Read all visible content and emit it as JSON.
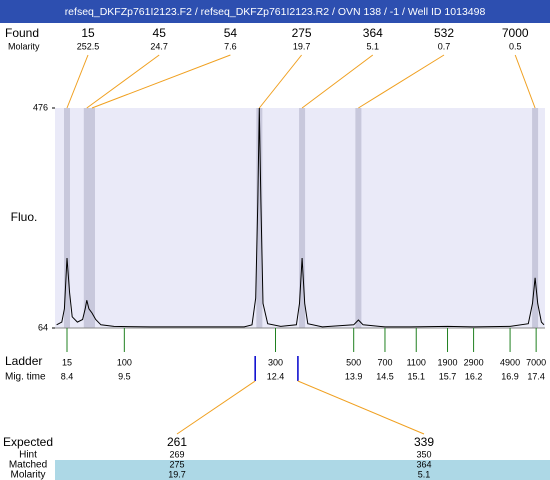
{
  "title": "refseq_DKFZp761I2123.F2 / refseq_DKFZp761I2123.R2 / OVN 138 / -1 / Well ID 1013498",
  "labels": {
    "found": "Found",
    "molarity": "Molarity",
    "fluo": "Fluo.",
    "ladder": "Ladder",
    "mig_time": "Mig. time",
    "expected": "Expected",
    "hint": "Hint",
    "matched": "Matched",
    "molarity_row": "Molarity"
  },
  "chart_data": {
    "type": "electropherogram",
    "xlim": [
      8.17,
      17.57
    ],
    "ylim": [
      64,
      476
    ],
    "yticks": [
      64,
      476
    ],
    "color": "#000000",
    "x": [
      8.2,
      8.3,
      8.35,
      8.4,
      8.45,
      8.5,
      8.6,
      8.7,
      8.75,
      8.78,
      8.82,
      8.88,
      8.95,
      9.05,
      9.3,
      10.0,
      11.0,
      11.8,
      11.95,
      12.02,
      12.06,
      12.09,
      12.12,
      12.16,
      12.25,
      12.5,
      12.8,
      12.86,
      12.91,
      12.96,
      13.02,
      13.3,
      13.9,
      13.99,
      14.08,
      14.5,
      15.0,
      15.7,
      16.2,
      16.9,
      17.25,
      17.33,
      17.38,
      17.43,
      17.5,
      17.55
    ],
    "values": [
      70,
      75,
      100,
      195,
      130,
      85,
      75,
      80,
      100,
      116,
      100,
      92,
      80,
      70,
      67,
      66,
      66,
      66,
      70,
      120,
      300,
      476,
      300,
      110,
      72,
      67,
      70,
      110,
      195,
      110,
      72,
      66,
      70,
      79,
      70,
      66,
      66,
      67,
      66,
      67,
      72,
      110,
      158,
      110,
      75,
      70
    ],
    "peaks": {
      "size": [
        15,
        45,
        54,
        275,
        364,
        532,
        7000
      ],
      "molarity": [
        252.5,
        24.7,
        7.6,
        19.7,
        5.1,
        0.7,
        0.5
      ],
      "time": [
        8.4,
        8.78,
        8.88,
        12.09,
        12.91,
        13.99,
        17.38
      ]
    },
    "ladder": {
      "size": [
        15,
        100,
        300,
        500,
        700,
        1100,
        1900,
        2900,
        4900,
        7000
      ],
      "time": [
        8.4,
        9.5,
        12.4,
        13.9,
        14.5,
        15.1,
        15.7,
        16.2,
        16.9,
        17.4
      ]
    },
    "expected": {
      "size": [
        261,
        339
      ],
      "hint": [
        269,
        350
      ],
      "matched": [
        275,
        364
      ],
      "molarity": [
        19.7,
        5.1
      ],
      "time": [
        12.01,
        12.83
      ]
    }
  }
}
